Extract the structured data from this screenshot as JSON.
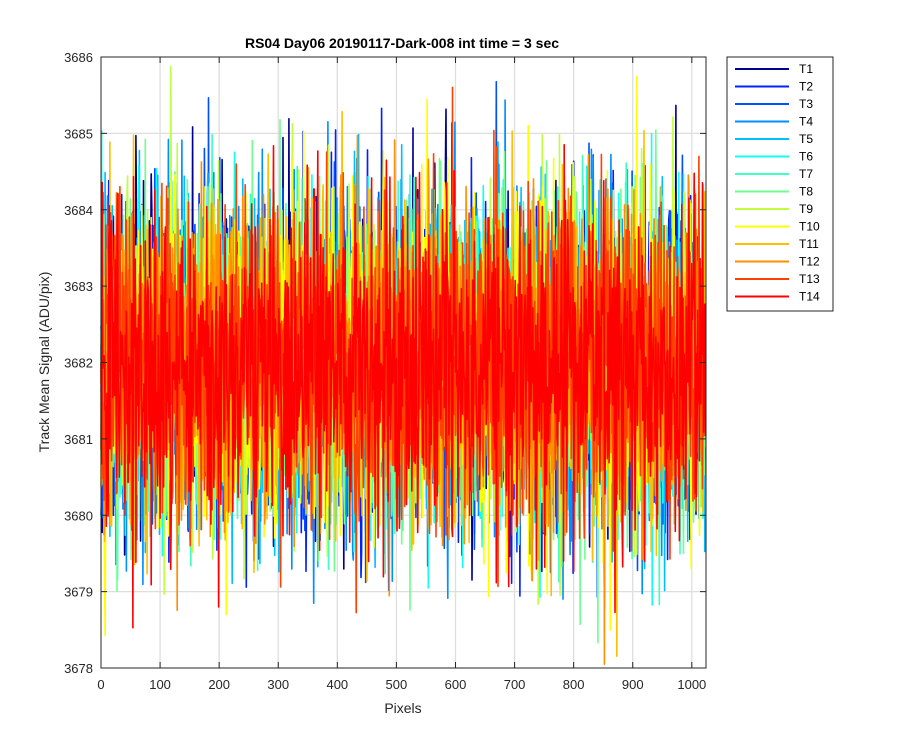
{
  "chart_data": {
    "type": "line",
    "title": "RS04 Day06 20190117-Dark-008 int time = 3 sec",
    "xlabel": "Pixels",
    "ylabel": "Track Mean Signal (ADU/pix)",
    "xlim": [
      0,
      1024
    ],
    "ylim": [
      3678,
      3686
    ],
    "xticks": [
      0,
      100,
      200,
      300,
      400,
      500,
      600,
      700,
      800,
      900,
      1000
    ],
    "yticks": [
      3678,
      3679,
      3680,
      3681,
      3682,
      3683,
      3684,
      3685,
      3686
    ],
    "grid": true,
    "legend_position": "outside-top-right",
    "noise": {
      "mean": 3682,
      "sigma": 1.05,
      "n_points": 1024
    },
    "series": [
      {
        "name": "T1",
        "color": "#00008F"
      },
      {
        "name": "T2",
        "color": "#0020FF"
      },
      {
        "name": "T3",
        "color": "#0050FF"
      },
      {
        "name": "T4",
        "color": "#008FFF"
      },
      {
        "name": "T5",
        "color": "#00BFFF"
      },
      {
        "name": "T6",
        "color": "#10FFEF"
      },
      {
        "name": "T7",
        "color": "#40FFBF"
      },
      {
        "name": "T8",
        "color": "#70FF8F"
      },
      {
        "name": "T9",
        "color": "#BFFF40"
      },
      {
        "name": "T10",
        "color": "#FFFF00"
      },
      {
        "name": "T11",
        "color": "#FFBF00"
      },
      {
        "name": "T12",
        "color": "#FF8F00"
      },
      {
        "name": "T13",
        "color": "#FF4000"
      },
      {
        "name": "T14",
        "color": "#FF0000"
      }
    ]
  }
}
